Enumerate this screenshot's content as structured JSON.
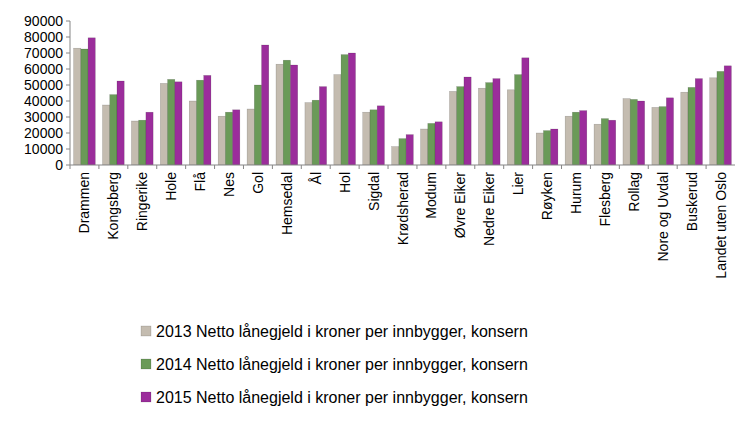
{
  "chart_data": {
    "type": "bar",
    "categories": [
      "Drammen",
      "Kongsberg",
      "Ringerike",
      "Hole",
      "Flå",
      "Nes",
      "Gol",
      "Hemsedal",
      "Ål",
      "Hol",
      "Sigdal",
      "Krødsherad",
      "Modum",
      "Øvre Eiker",
      "Nedre Eiker",
      "Lier",
      "Røyken",
      "Hurum",
      "Flesberg",
      "Rollag",
      "Nore og Uvdal",
      "Buskerud",
      "Landet uten Oslo"
    ],
    "series": [
      {
        "name": "2013 Netto lånegjeld i kroner per innbygger, konsern",
        "color": "#c4bcb0",
        "values": [
          73000,
          37500,
          27500,
          51000,
          40000,
          30500,
          35000,
          63000,
          39000,
          56500,
          33000,
          11500,
          22500,
          46000,
          48000,
          47000,
          20000,
          30500,
          25500,
          41500,
          36000,
          45500,
          54500
        ]
      },
      {
        "name": "2014 Netto lånegjeld i kroner per innbygger, konsern",
        "color": "#6a9a58",
        "values": [
          72500,
          44000,
          28000,
          53500,
          53000,
          33000,
          50000,
          65500,
          40500,
          69000,
          34500,
          16500,
          26000,
          49000,
          51500,
          56500,
          21500,
          33000,
          29000,
          41000,
          36500,
          48500,
          58500
        ]
      },
      {
        "name": "2015 Netto lånegjeld i kroner per innbygger, konsern",
        "color": "#9b2d9b",
        "values": [
          79500,
          52500,
          33000,
          52000,
          56000,
          34500,
          75000,
          62500,
          49000,
          70000,
          37000,
          19000,
          27000,
          55000,
          54000,
          67000,
          22500,
          34000,
          28000,
          40000,
          42000,
          54000,
          62000
        ]
      }
    ],
    "ylim": [
      0,
      90000
    ],
    "yticks": [
      0,
      10000,
      20000,
      30000,
      40000,
      50000,
      60000,
      70000,
      80000,
      90000
    ],
    "grid": false,
    "legend": "bottom"
  }
}
